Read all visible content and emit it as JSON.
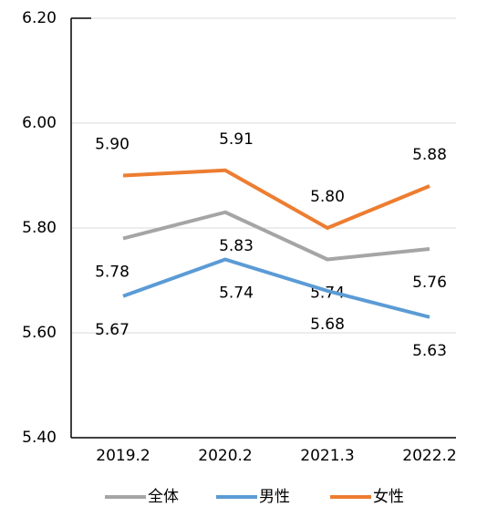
{
  "chart_data": {
    "type": "line",
    "categories": [
      "2019.2",
      "2020.2",
      "2021.3",
      "2022.2"
    ],
    "series": [
      {
        "name": "全体",
        "color": "#a5a5a5",
        "values": [
          5.78,
          5.83,
          5.74,
          5.76
        ],
        "value_labels": [
          "5.78",
          "5.83",
          "5.74",
          "5.76"
        ]
      },
      {
        "name": "男性",
        "color": "#5b9bd5",
        "values": [
          5.67,
          5.74,
          5.68,
          5.63
        ],
        "value_labels": [
          "5.67",
          "5.74",
          "5.68",
          "5.63"
        ]
      },
      {
        "name": "女性",
        "color": "#ed7d31",
        "values": [
          5.9,
          5.91,
          5.8,
          5.88
        ],
        "value_labels": [
          "5.90",
          "5.91",
          "5.80",
          "5.88"
        ]
      }
    ],
    "ylim": [
      5.4,
      6.2
    ],
    "yticks": [
      {
        "value": 5.4,
        "label": "5.40"
      },
      {
        "value": 5.6,
        "label": "5.60"
      },
      {
        "value": 5.8,
        "label": "5.80"
      },
      {
        "value": 6.0,
        "label": "6.00"
      },
      {
        "value": 6.2,
        "label": "6.20"
      }
    ],
    "grid": true,
    "legend": "bottom"
  }
}
